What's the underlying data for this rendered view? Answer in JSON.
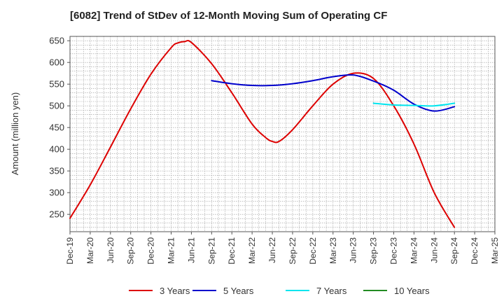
{
  "chart_data": {
    "type": "line",
    "title": "[6082]  Trend of StDev of 12-Month Moving Sum of Operating CF",
    "xlabel": "",
    "ylabel": "Amount (million yen)",
    "ylim": [
      210,
      660
    ],
    "yticks": [
      250,
      300,
      350,
      400,
      450,
      500,
      550,
      600,
      650
    ],
    "x_ticks": [
      "Dec-19",
      "Mar-20",
      "Jun-20",
      "Sep-20",
      "Dec-20",
      "Mar-21",
      "Jun-21",
      "Sep-21",
      "Dec-21",
      "Mar-22",
      "Jun-22",
      "Sep-22",
      "Dec-22",
      "Mar-23",
      "Jun-23",
      "Sep-23",
      "Dec-23",
      "Mar-24",
      "Jun-24",
      "Sep-24",
      "Dec-24",
      "Mar-25"
    ],
    "grid": true,
    "legend_position": "bottom",
    "series": [
      {
        "name": "3 Years",
        "color": "#dd0000",
        "x": [
          "Dec-19",
          "Mar-20",
          "Jun-20",
          "Sep-20",
          "Dec-20",
          "Mar-21",
          "Apr-21",
          "May-21",
          "Jun-21",
          "Sep-21",
          "Dec-21",
          "Mar-22",
          "May-22",
          "Jun-22",
          "Jul-22",
          "Sep-22",
          "Dec-22",
          "Mar-23",
          "Jun-23",
          "Sep-23",
          "Dec-23",
          "Mar-24",
          "Jun-24",
          "Sep-24"
        ],
        "values": [
          241,
          318,
          405,
          493,
          573,
          634,
          645,
          648,
          646,
          597,
          530,
          458,
          427,
          418,
          418,
          445,
          500,
          550,
          575,
          563,
          500,
          412,
          300,
          220
        ]
      },
      {
        "name": "5 Years",
        "color": "#0000cc",
        "x": [
          "Sep-21",
          "Dec-21",
          "Mar-22",
          "Jun-22",
          "Sep-22",
          "Dec-22",
          "Mar-23",
          "Jun-23",
          "Sep-23",
          "Dec-23",
          "Mar-24",
          "Jun-24",
          "Sep-24"
        ],
        "values": [
          558,
          551,
          547,
          547,
          551,
          558,
          567,
          571,
          557,
          536,
          504,
          488,
          498
        ]
      },
      {
        "name": "7 Years",
        "color": "#00e5ee",
        "x": [
          "Sep-23",
          "Dec-23",
          "Mar-24",
          "Jun-24",
          "Sep-24"
        ],
        "values": [
          506,
          502,
          501,
          500,
          506
        ]
      },
      {
        "name": "10 Years",
        "color": "#228b22",
        "x": [],
        "values": []
      }
    ]
  }
}
